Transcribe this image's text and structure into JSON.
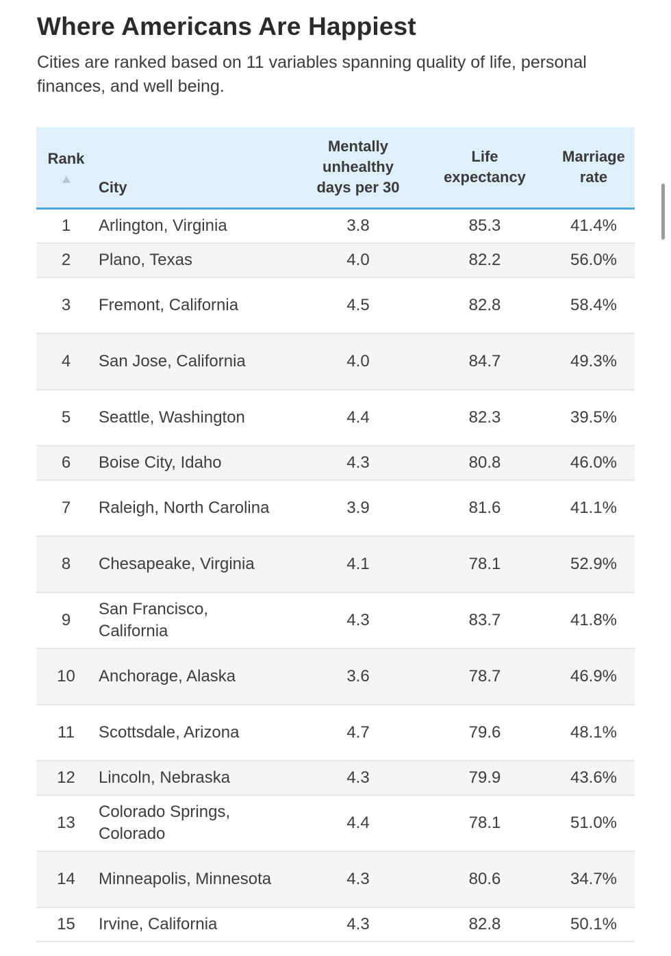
{
  "title": "Where Americans Are Happiest",
  "subtitle": "Cities are ranked based on 11 variables spanning quality of life, personal finances, and well being.",
  "chart_data": {
    "type": "table",
    "columns": [
      {
        "key": "rank",
        "label": "Rank",
        "sorted": "ascending"
      },
      {
        "key": "city",
        "label": "City"
      },
      {
        "key": "mental",
        "label": "Mentally unhealthy days per 30"
      },
      {
        "key": "life",
        "label": "Life expectancy"
      },
      {
        "key": "marriage",
        "label": "Marriage rate"
      }
    ],
    "rows": [
      {
        "rank": "1",
        "city": "Arlington, Virginia",
        "mental": "3.8",
        "life": "85.3",
        "marriage": "41.4%"
      },
      {
        "rank": "2",
        "city": "Plano, Texas",
        "mental": "4.0",
        "life": "82.2",
        "marriage": "56.0%"
      },
      {
        "rank": "3",
        "city": "Fremont, California",
        "mental": "4.5",
        "life": "82.8",
        "marriage": "58.4%"
      },
      {
        "rank": "4",
        "city": "San Jose, California",
        "mental": "4.0",
        "life": "84.7",
        "marriage": "49.3%"
      },
      {
        "rank": "5",
        "city": "Seattle, Washington",
        "mental": "4.4",
        "life": "82.3",
        "marriage": "39.5%"
      },
      {
        "rank": "6",
        "city": "Boise City, Idaho",
        "mental": "4.3",
        "life": "80.8",
        "marriage": "46.0%"
      },
      {
        "rank": "7",
        "city": "Raleigh, North Carolina",
        "mental": "3.9",
        "life": "81.6",
        "marriage": "41.1%"
      },
      {
        "rank": "8",
        "city": "Chesapeake, Virginia",
        "mental": "4.1",
        "life": "78.1",
        "marriage": "52.9%"
      },
      {
        "rank": "9",
        "city": "San Francisco, California",
        "mental": "4.3",
        "life": "83.7",
        "marriage": "41.8%"
      },
      {
        "rank": "10",
        "city": "Anchorage, Alaska",
        "mental": "3.6",
        "life": "78.7",
        "marriage": "46.9%"
      },
      {
        "rank": "11",
        "city": "Scottsdale, Arizona",
        "mental": "4.7",
        "life": "79.6",
        "marriage": "48.1%"
      },
      {
        "rank": "12",
        "city": "Lincoln, Nebraska",
        "mental": "4.3",
        "life": "79.9",
        "marriage": "43.6%"
      },
      {
        "rank": "13",
        "city": "Colorado Springs, Colorado",
        "mental": "4.4",
        "life": "78.1",
        "marriage": "51.0%"
      },
      {
        "rank": "14",
        "city": "Minneapolis, Minnesota",
        "mental": "4.3",
        "life": "80.6",
        "marriage": "34.7%"
      },
      {
        "rank": "15",
        "city": "Irvine, California",
        "mental": "4.3",
        "life": "82.8",
        "marriage": "50.1%"
      }
    ]
  },
  "colors": {
    "header_background": "#dff0fb",
    "header_rule": "#4aa8de",
    "row_stripe": "#f5f5f5"
  }
}
